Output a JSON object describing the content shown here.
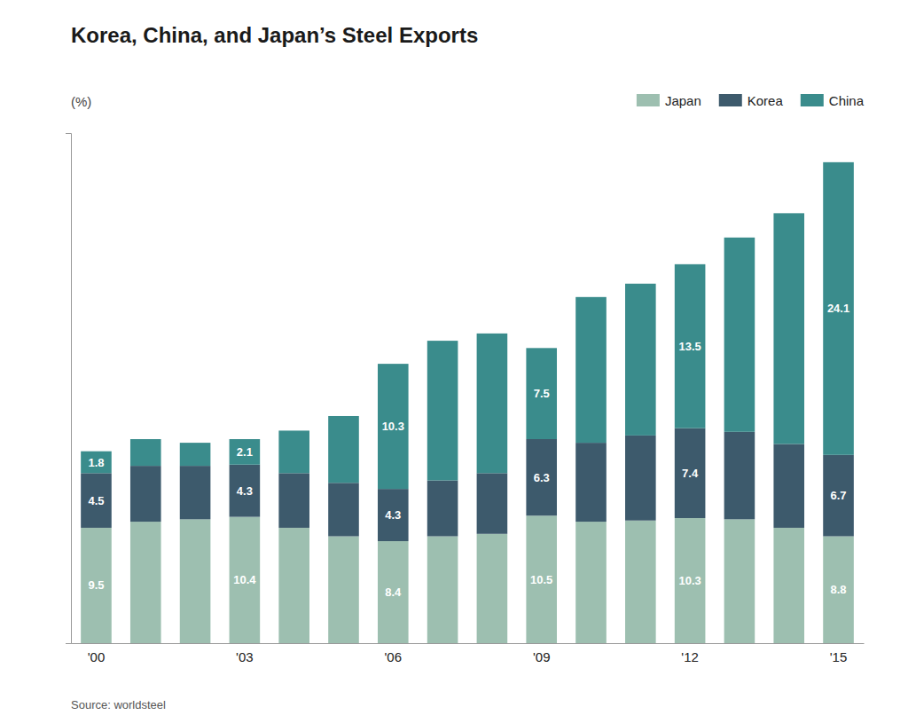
{
  "chart_data": {
    "type": "bar",
    "stacked": true,
    "title": "Korea, China, and Japan’s Steel Exports",
    "ylabel": "(%)",
    "annotations": [
      "Source: worldsteel"
    ],
    "categories": [
      "'00",
      null,
      null,
      "'03",
      null,
      null,
      "'06",
      null,
      null,
      "'09",
      null,
      null,
      "'12",
      null,
      null,
      "'15"
    ],
    "series": [
      {
        "name": "Japan",
        "color": "#9DBFB0",
        "values": [
          9.5,
          10.0,
          10.2,
          10.4,
          9.5,
          8.8,
          8.4,
          8.8,
          9.0,
          10.5,
          10.0,
          10.1,
          10.3,
          10.2,
          9.5,
          8.8
        ],
        "value_labels": [
          "9.5",
          null,
          null,
          "10.4",
          null,
          null,
          "8.4",
          null,
          null,
          "10.5",
          null,
          null,
          "10.3",
          null,
          null,
          "8.8"
        ]
      },
      {
        "name": "Korea",
        "color": "#3D5A6C",
        "values": [
          4.5,
          4.6,
          4.4,
          4.3,
          4.5,
          4.4,
          4.3,
          4.6,
          5.0,
          6.3,
          6.5,
          7.0,
          7.4,
          7.2,
          6.9,
          6.7
        ],
        "value_labels": [
          "4.5",
          null,
          null,
          "4.3",
          null,
          null,
          "4.3",
          null,
          null,
          "6.3",
          null,
          null,
          "7.4",
          null,
          null,
          "6.7"
        ]
      },
      {
        "name": "China",
        "color": "#3A8C8C",
        "values": [
          1.8,
          2.2,
          1.9,
          2.1,
          3.5,
          5.5,
          10.3,
          11.5,
          11.5,
          7.5,
          12.0,
          12.5,
          13.5,
          16.0,
          19.0,
          24.1
        ],
        "value_labels": [
          "1.8",
          null,
          null,
          "2.1",
          null,
          null,
          "10.3",
          null,
          null,
          "7.5",
          null,
          null,
          "13.5",
          null,
          null,
          "24.1"
        ]
      }
    ],
    "ylim": [
      0,
      42
    ],
    "data_labels": true,
    "tick_labels": "x",
    "grid": false,
    "legend": "upper right"
  }
}
